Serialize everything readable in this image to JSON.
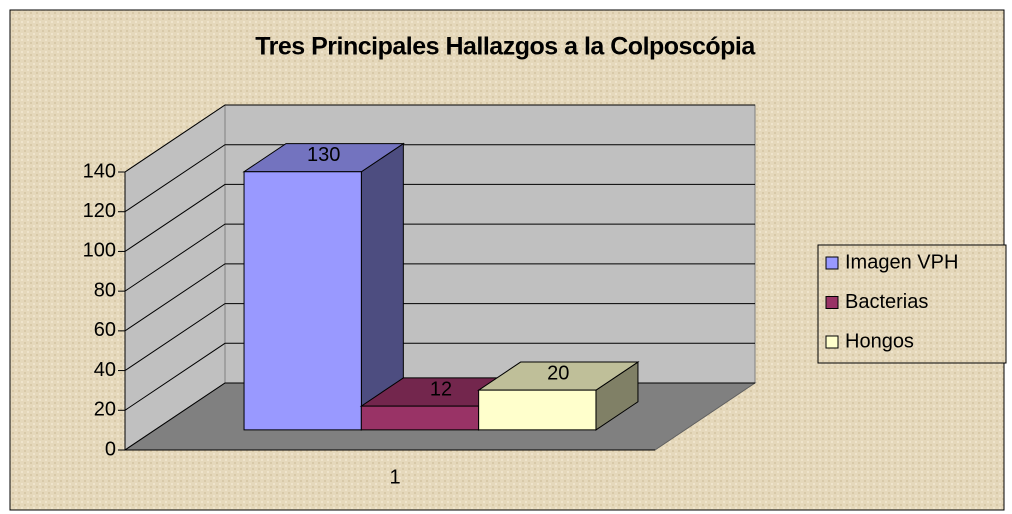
{
  "chart_data": {
    "type": "bar",
    "title": "Tres Principales Hallazgos a la Colposcópia",
    "categories": [
      "1"
    ],
    "series": [
      {
        "name": "Imagen VPH",
        "color": "#9999ff",
        "values": [
          130
        ]
      },
      {
        "name": "Bacterias",
        "color": "#993366",
        "values": [
          12
        ]
      },
      {
        "name": "Hongos",
        "color": "#ffffcc",
        "values": [
          20
        ]
      }
    ],
    "ylim": [
      0,
      140
    ],
    "yticks": [
      0,
      20,
      40,
      60,
      80,
      100,
      120,
      140
    ],
    "grid": true,
    "legend": "right"
  }
}
